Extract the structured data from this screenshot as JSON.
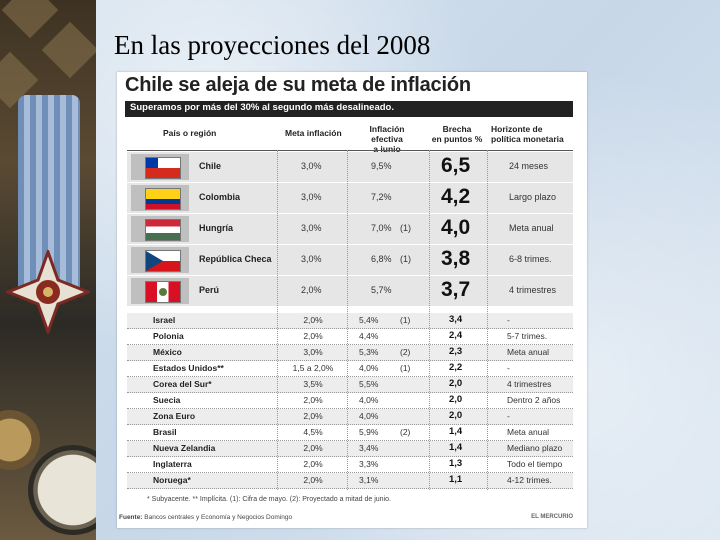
{
  "slide": {
    "title": "En las proyecciones del 2008"
  },
  "card": {
    "title": "Chile se aleja de su meta de inflación",
    "banner": "Superamos por más del 30% al segundo más desalineado."
  },
  "headers": {
    "pais": "País o región",
    "meta": "Meta inflación",
    "efectiva": [
      "Inflación efectiva",
      "a junio"
    ],
    "brecha": [
      "Brecha",
      "en puntos %"
    ],
    "horizonte": [
      "Horizonte de",
      "política monetaria"
    ]
  },
  "featured_rows": [
    {
      "name": "Chile",
      "flag": "flag-chile",
      "meta": "3,0%",
      "infl": "9,5%",
      "note": "",
      "brecha": "6,5",
      "horizonte": "24 meses"
    },
    {
      "name": "Colombia",
      "flag": "flag-colombia",
      "meta": "3,0%",
      "infl": "7,2%",
      "note": "",
      "brecha": "4,2",
      "horizonte": "Largo plazo"
    },
    {
      "name": "Hungría",
      "flag": "flag-hungria",
      "meta": "3,0%",
      "infl": "7,0%",
      "note": "(1)",
      "brecha": "4,0",
      "horizonte": "Meta anual"
    },
    {
      "name": "República Checa",
      "flag": "flag-republica-checa",
      "meta": "3,0%",
      "infl": "6,8%",
      "note": "(1)",
      "brecha": "3,8",
      "horizonte": "6-8 trimes."
    },
    {
      "name": "Perú",
      "flag": "flag-peru",
      "meta": "2,0%",
      "infl": "5,7%",
      "note": "",
      "brecha": "3,7",
      "horizonte": "4 trimestres"
    }
  ],
  "rows": [
    {
      "name": "Israel",
      "meta": "2,0%",
      "infl": "5,4%",
      "note": "(1)",
      "brecha": "3,4",
      "horizonte": "-"
    },
    {
      "name": "Polonia",
      "meta": "2,0%",
      "infl": "4,4%",
      "note": "",
      "brecha": "2,4",
      "horizonte": "5-7 trimes."
    },
    {
      "name": "México",
      "meta": "3,0%",
      "infl": "5,3%",
      "note": "(2)",
      "brecha": "2,3",
      "horizonte": "Meta anual"
    },
    {
      "name": "Estados Unidos**",
      "meta": "1,5 a 2,0%",
      "infl": "4,0%",
      "note": "(1)",
      "brecha": "2,2",
      "horizonte": "-"
    },
    {
      "name": "Corea del Sur*",
      "meta": "3,5%",
      "infl": "5,5%",
      "note": "",
      "brecha": "2,0",
      "horizonte": "4 trimestres"
    },
    {
      "name": "Suecia",
      "meta": "2,0%",
      "infl": "4,0%",
      "note": "",
      "brecha": "2,0",
      "horizonte": "Dentro 2 años"
    },
    {
      "name": "Zona Euro",
      "meta": "2,0%",
      "infl": "4,0%",
      "note": "",
      "brecha": "2,0",
      "horizonte": "-"
    },
    {
      "name": "Brasil",
      "meta": "4,5%",
      "infl": "5,9%",
      "note": "(2)",
      "brecha": "1,4",
      "horizonte": "Meta anual"
    },
    {
      "name": "Nueva Zelandia",
      "meta": "2,0%",
      "infl": "3,4%",
      "note": "",
      "brecha": "1,4",
      "horizonte": "Mediano plazo"
    },
    {
      "name": "Inglaterra",
      "meta": "2,0%",
      "infl": "3,3%",
      "note": "",
      "brecha": "1,3",
      "horizonte": "Todo el tiempo"
    },
    {
      "name": "Noruega*",
      "meta": "2,0%",
      "infl": "3,1%",
      "note": "",
      "brecha": "1,1",
      "horizonte": "4-12 trimes."
    }
  ],
  "footnote": "* Subyacente.    ** Implícita.    (1): Cifra de mayo.    (2): Proyectado a mitad de junio.",
  "source": {
    "label": "Fuente:",
    "text": "Bancos centrales y Economía y Negocios Domingo"
  },
  "brand": "EL MERCURIO"
}
